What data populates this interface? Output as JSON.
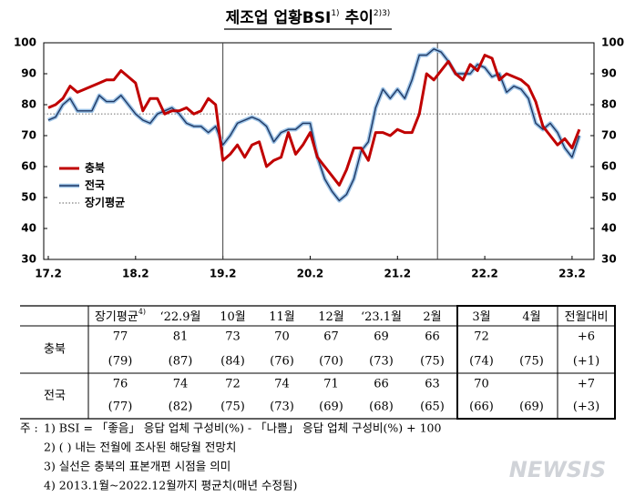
{
  "chart_data": {
    "type": "line",
    "title": {
      "text": "제조업 업황BSI",
      "note": "1)",
      "suffix": "추이",
      "suffix_note": "2)3)"
    },
    "categories": [
      "17.2",
      null,
      null,
      null,
      null,
      null,
      null,
      null,
      null,
      null,
      null,
      null,
      "18.2",
      null,
      null,
      null,
      null,
      null,
      null,
      null,
      null,
      null,
      null,
      null,
      "19.2",
      null,
      null,
      null,
      null,
      null,
      null,
      null,
      null,
      null,
      null,
      null,
      "20.2",
      null,
      null,
      null,
      null,
      null,
      null,
      null,
      null,
      null,
      null,
      null,
      "21.2",
      null,
      null,
      null,
      null,
      null,
      null,
      null,
      null,
      null,
      null,
      null,
      "22.2",
      null,
      null,
      null,
      null,
      null,
      null,
      null,
      null,
      null,
      null,
      null,
      "23.2",
      null
    ],
    "series": [
      {
        "name": "충북",
        "color": "#c00000",
        "line_width": 3,
        "values": [
          79,
          80,
          82,
          86,
          84,
          85,
          86,
          87,
          88,
          88,
          91,
          89,
          87,
          78,
          82,
          82,
          77,
          78,
          78,
          79,
          77,
          78,
          82,
          80,
          62,
          64,
          67,
          63,
          67,
          68,
          60,
          62,
          63,
          71,
          64,
          67,
          71,
          63,
          60,
          57,
          54,
          59,
          66,
          66,
          62,
          71,
          71,
          70,
          72,
          71,
          71,
          77,
          90,
          88,
          91,
          94,
          90,
          88,
          93,
          91,
          96,
          95,
          88,
          90,
          89,
          88,
          86,
          81,
          73,
          70,
          67,
          69,
          66,
          72
        ]
      },
      {
        "name": "전국",
        "color": "#1f3864",
        "outline": "#9dc3e6",
        "line_width": 1.4,
        "values": [
          75,
          76,
          80,
          82,
          78,
          78,
          78,
          83,
          81,
          81,
          83,
          80,
          77,
          75,
          74,
          77,
          78,
          79,
          77,
          74,
          73,
          73,
          71,
          73,
          67,
          70,
          74,
          75,
          76,
          75,
          73,
          68,
          71,
          72,
          72,
          74,
          74,
          63,
          56,
          52,
          49,
          51,
          56,
          65,
          68,
          79,
          85,
          82,
          85,
          82,
          88,
          96,
          96,
          98,
          97,
          94,
          90,
          90,
          90,
          93,
          92,
          89,
          90,
          84,
          86,
          85,
          82,
          74,
          72,
          74,
          71,
          66,
          63,
          70
        ]
      }
    ],
    "reference_line": {
      "name": "장기평균",
      "value": 77,
      "color": "#808080",
      "style": "dotted"
    },
    "ylim": [
      30,
      100
    ],
    "yticks": [
      30,
      40,
      50,
      60,
      70,
      80,
      90,
      100
    ],
    "right_axis_labels": true,
    "legend": "left"
  },
  "table": {
    "columns": [
      {
        "label": "장기평균",
        "note": "4)"
      },
      {
        "label": "‘22.9월"
      },
      {
        "label": "10월"
      },
      {
        "label": "11월"
      },
      {
        "label": "12월"
      },
      {
        "label": "‘23.1월"
      },
      {
        "label": "2월"
      },
      {
        "label": "3월"
      },
      {
        "label": "4월"
      },
      {
        "label": "전월대비"
      }
    ],
    "rows": [
      {
        "label": "충북",
        "actual": [
          "77",
          "81",
          "73",
          "70",
          "67",
          "69",
          "66",
          "72",
          null,
          "+6"
        ],
        "forecast": [
          "(79)",
          "(87)",
          "(84)",
          "(76)",
          "(70)",
          "(73)",
          "(75)",
          "(74)",
          "(75)",
          "(+1)"
        ]
      },
      {
        "label": "전국",
        "actual": [
          "76",
          "74",
          "72",
          "74",
          "71",
          "66",
          "63",
          "70",
          null,
          "+7"
        ],
        "forecast": [
          "(77)",
          "(82)",
          "(75)",
          "(73)",
          "(69)",
          "(68)",
          "(65)",
          "(66)",
          "(69)",
          "(+3)"
        ]
      }
    ]
  },
  "notes": {
    "prefix": "주 :",
    "items": [
      "1) BSI = 「좋음」 응답 업체 구성비(%) - 「나쁨」 응답 업체 구성비(%) + 100",
      "2) (  ) 내는 전월에 조사된 해당월 전망치",
      "3) 실선은 충북의 표본개편 시점을 의미",
      "4) 2013.1월~2022.12월까지 평균치(매년 수정됨)"
    ]
  },
  "watermark": "NEWSIS"
}
